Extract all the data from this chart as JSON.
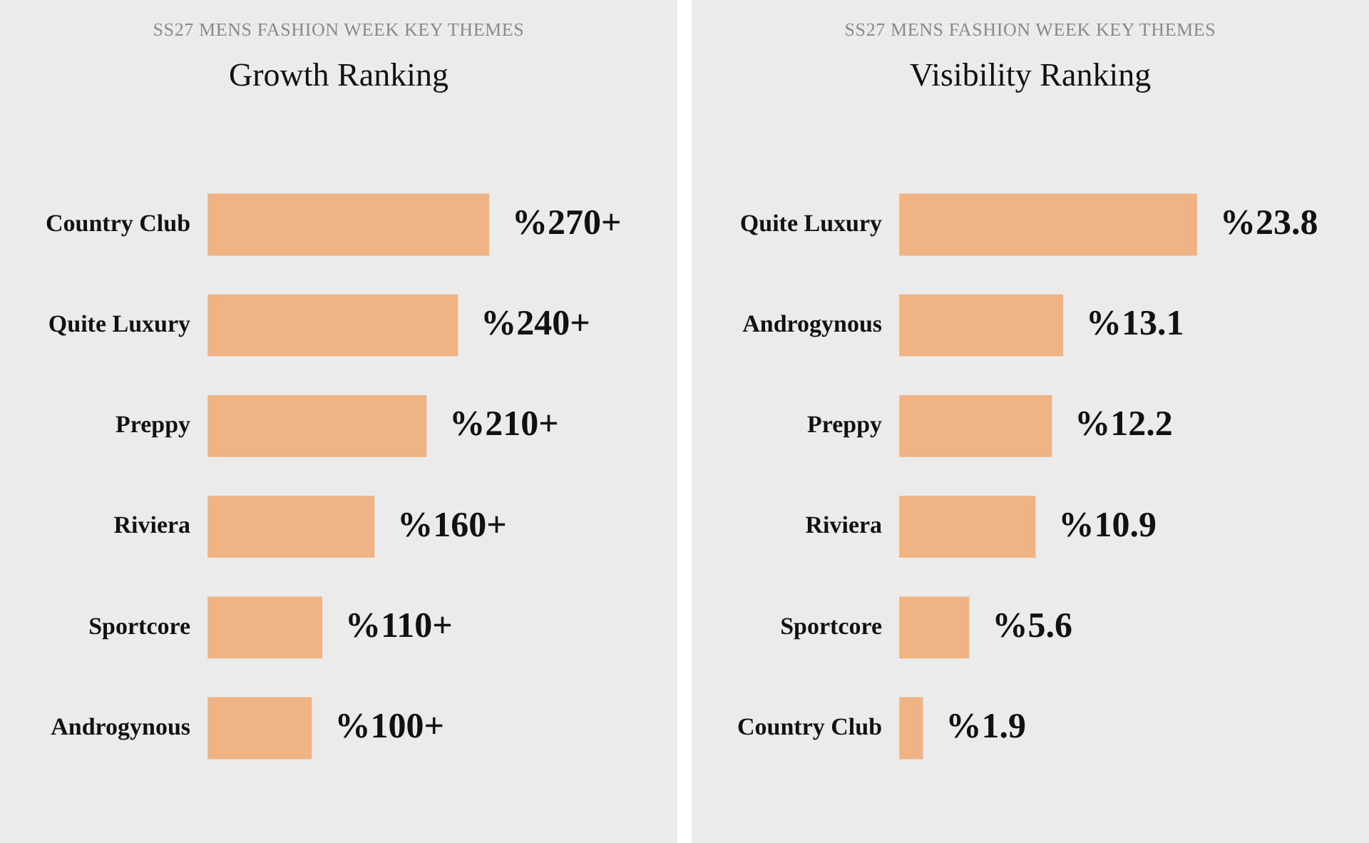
{
  "chart_data": [
    {
      "type": "bar",
      "orientation": "horizontal",
      "subtitle": "SS27 MENS FASHION WEEK KEY THEMES",
      "title": "Growth Ranking",
      "categories": [
        "Country Club",
        "Quite Luxury",
        "Preppy",
        "Riviera",
        "Sportcore",
        "Androgynous"
      ],
      "values": [
        270,
        240,
        210,
        160,
        110,
        100
      ],
      "value_labels": [
        "%270+",
        "%240+",
        "%210+",
        "%160+",
        "%110+",
        "%100+"
      ],
      "color": "#f0b383",
      "tick_labels": "y"
    },
    {
      "type": "bar",
      "orientation": "horizontal",
      "subtitle": "SS27 MENS FASHION WEEK KEY THEMES",
      "title": "Visibility Ranking",
      "categories": [
        "Quite Luxury",
        "Androgynous",
        "Preppy",
        "Riviera",
        "Sportcore",
        "Country Club"
      ],
      "values": [
        23.8,
        13.1,
        12.2,
        10.9,
        5.6,
        1.9
      ],
      "value_labels": [
        "%23.8",
        "%13.1",
        "%12.2",
        "%10.9",
        "%5.6",
        "%1.9"
      ],
      "color": "#f0b383",
      "tick_labels": "y"
    }
  ]
}
